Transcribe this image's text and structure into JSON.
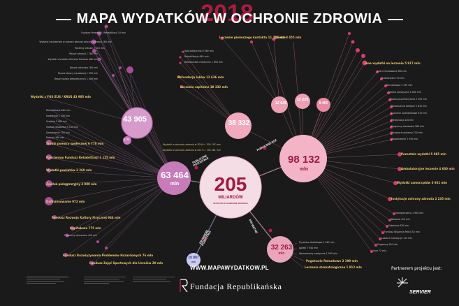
{
  "header": {
    "title": "MAPA WYDATKÓW W OCHRONIE ZDROWIA",
    "year": "2018"
  },
  "center": {
    "value": "205",
    "unit": "MILIARDÓW",
    "caption": "WYDATKI W OCHRONIE ZDROWIA",
    "note1": "Wydatki w ochronie zdrowia w 2016 r.: 204 197 mln",
    "note2": "Wydatki w ochronie zdrowia w 2017 r.: 194 481 mln"
  },
  "hubs": {
    "public_other": {
      "value": "63 464",
      "unit": "mln",
      "tag": "PUBLICZNE POZOSTAŁE"
    },
    "public_nfz": {
      "value": "98 132",
      "unit": "mln",
      "tag": "PUBLICZNE NFZ"
    },
    "private": {
      "value": "32 263",
      "unit": "mln",
      "tag": "PRYWATNE"
    },
    "private_other": {
      "value": "10 887",
      "unit": "mln",
      "tag": "PRYWATNE POZOSTAŁE"
    }
  },
  "nodes": {
    "n43905": "43 905",
    "n38332": "38 332",
    "n12636": "12 636",
    "n11225": "11 225",
    "n8455": "8 455",
    "n6770": "6 770"
  },
  "labels_left": [
    "Fundusz Prewencji i Rehabilitacji 10 mln",
    "Wydatki ministerstw w ramach własnej ochrony zdrowia 160 mln",
    "Rezerwy celowe 2 010 mln",
    "Resort zdrowia 1 180 mln",
    "Wydatki z budżetu Ministra Zdrowia 460 mln",
    "Resort rolnictwa 160 mln",
    "Resort obrony narodowej 1 550 mln",
    "Resort spraw wewnętrznych 1 400 mln",
    "Wydatki z FUS-ZUS / KRUS 43 905 mln",
    "Rehabilitacja 480 mln",
    "Inwestycje 1 100 mln",
    "Szpitale 3 480 mln",
    "Opieka zdrowotna 5 140 mln",
    "Świadczenia 700 mln",
    "Dotacje 160 mln",
    "Środki pomocy społecznej 6 770 mln",
    "Państwowy Fundusz Rehabilitacji 1 125 mln",
    "Zasiłek pielęgnacyjny 4 880 mln",
    "Wydatki powiatów 3 260 mln",
    "Dofinansowanie 972 mln",
    "Fundusz Rozwoju Kultury Fizycznej 944 mln",
    "Kapitałowe 775 mln",
    "Programy zdrowotne 420 mln",
    "Fundusz Rozwiązywania Problemów Hazardowych 76 mln",
    "Fundusz Zajęć Sportowych dla Uczniów 20 mln"
  ],
  "labels_top": [
    "Leczenie pierwszego kontaktu 11 225 mln",
    "Opieka 8 455 mln",
    "Refundacja leków 12 636 mln",
    "Leczenie szpitalne 38 332 mln",
    "Specjalistyczna 6 580 mln",
    "Rehabilitacja 640 mln",
    "Ratownictwo medyczne 1 650 mln"
  ],
  "labels_right": [
    "Inne wydatki na leczenie 5 917 mln",
    "Leki refundowane 960 mln",
    "Profilaktyka 710 mln",
    "Stomatologia 2 130 mln",
    "Opieka paliatywna 1 460 mln",
    "Opieka psychiatryczna 2 500 mln",
    "Świadczenia odrębne 1 810 mln",
    "Leczenie uzdrowiskowe 910 mln",
    "Pielęgnacja 420 mln",
    "Programy zdrowotne 580 mln",
    "Transport sanitarny 210 mln",
    "Zaopatrzenie 1 090 mln",
    "Pozostałe wydatki 5 065 mln",
    "Ambulatoryjne leczenie 4 630 mln",
    "Wydatki samorządów 3 931 mln",
    "Instytucje ochrony zdrowia 2 235 mln",
    "Ubezpieczenia 1 950 mln",
    "Badania 410 mln",
    "Szkolenia 620 mln",
    "Fundusz Wsparcia Policji 52 mln",
    "Lokalne inwestycje 115 mln",
    "Programy 250 mln",
    "Inne 72 mln"
  ],
  "labels_bottom": [
    "Prywatne dodatkowe 4 160 mln",
    "Apteki 7 940 mln",
    "Abonamenty medyczne 1 955 mln",
    "Pogotowie Ratunkowe 2 199 mln",
    "Leczenie stomatologiczne 1 812 mln"
  ],
  "footer": {
    "url": "WWW.MAPAWYDATKOW.PL",
    "org": "Fundacja Republikańska",
    "partner": "Partnerem projektu jest:",
    "sponsor": "SERVIER"
  },
  "colors": {
    "background": "#1b1a1b",
    "public_other": "#c77bb9",
    "public_nfz": "#f2b4c6",
    "private": "#e9a6bb",
    "center": "#f5dde6",
    "accent": "#b81d46"
  },
  "icons": [
    "arrow-icon",
    "servier-logo-icon",
    "fundacja-logo-icon"
  ]
}
